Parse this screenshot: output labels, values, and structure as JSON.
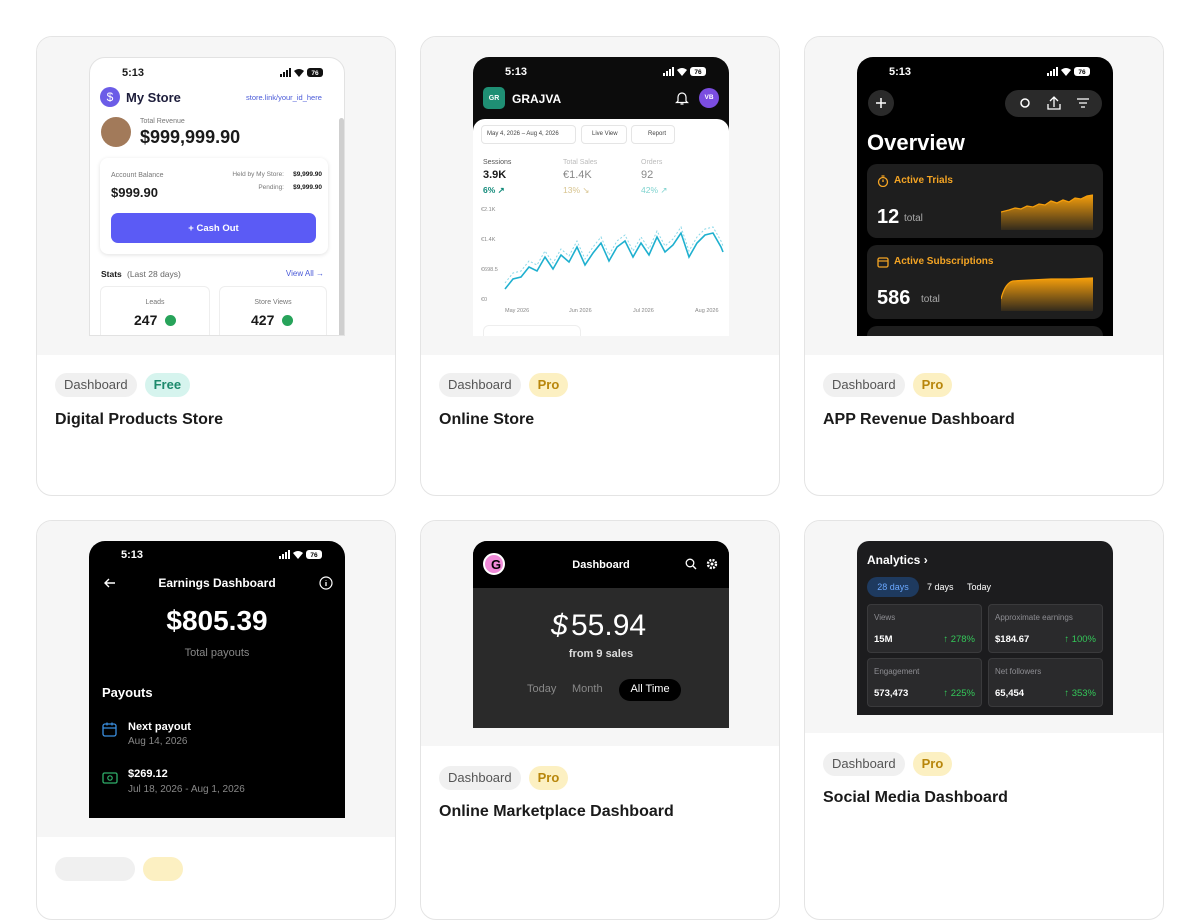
{
  "cards": [
    {
      "preview": {
        "time": "5:13",
        "battery": "76",
        "store_name": "My Store",
        "store_link": "store.link/your_id_here",
        "revenue_label": "Total Revenue",
        "revenue": "$999,999.90",
        "balance_label": "Account Balance",
        "balance": "$999.90",
        "held_label": "Held by My Store:",
        "held": "$9,999.90",
        "pending_label": "Pending:",
        "pending": "$9,999.90",
        "button": "+ Cash Out",
        "stats_label": "Stats",
        "stats_period": "(Last 28 days)",
        "view_all": "View All →",
        "stats": [
          {
            "label": "Leads",
            "value": "247"
          },
          {
            "label": "Store Views",
            "value": "427"
          }
        ]
      },
      "tags": [
        "Dashboard",
        "Free"
      ],
      "title": "Digital Products Store"
    },
    {
      "preview": {
        "time": "5:13",
        "battery": "76",
        "logo": "GR",
        "brand": "GRAJVA",
        "avatar": "VB",
        "date_range": "May 4, 2026 – Aug 4, 2026",
        "live_view": "Live View",
        "report": "Report",
        "metrics": [
          {
            "label": "Sessions",
            "value": "3.9K",
            "change": "6% ↗"
          },
          {
            "label": "Total Sales",
            "value": "€1.4K",
            "change": "13% ↘"
          },
          {
            "label": "Orders",
            "value": "92",
            "change": "42% ↗"
          }
        ],
        "y_labels": [
          "€2.1K",
          "€1.4K",
          "€698.5",
          "€0"
        ],
        "x_labels": [
          "May 2026",
          "Jun 2026",
          "Jul 2026",
          "Aug 2026"
        ]
      },
      "tags": [
        "Dashboard",
        "Pro"
      ],
      "title": "Online Store"
    },
    {
      "preview": {
        "time": "5:13",
        "battery": "76",
        "heading": "Overview",
        "panels": [
          {
            "label": "Active Trials",
            "value": "12",
            "unit": "total"
          },
          {
            "label": "Active Subscriptions",
            "value": "586",
            "unit": "total"
          }
        ]
      },
      "tags": [
        "Dashboard",
        "Pro"
      ],
      "title": "APP Revenue Dashboard"
    },
    {
      "preview": {
        "time": "5:13",
        "battery": "76",
        "heading": "Earnings Dashboard",
        "amount": "$805.39",
        "amount_label": "Total payouts",
        "section": "Payouts",
        "items": [
          {
            "title": "Next payout",
            "subtitle": "Aug 14, 2026"
          },
          {
            "title": "$269.12",
            "subtitle": "Jul 18, 2026 - Aug 1, 2026"
          }
        ]
      }
    },
    {
      "preview": {
        "logo": "G",
        "heading": "Dashboard",
        "currency": "$",
        "amount": "55.94",
        "caption": "from 9 sales",
        "tabs": [
          "Today",
          "Month",
          "All Time"
        ]
      },
      "tags": [
        "Dashboard",
        "Pro"
      ],
      "title": "Online Marketplace Dashboard"
    },
    {
      "preview": {
        "heading": "Analytics ›",
        "ranges": [
          "28 days",
          "7 days",
          "Today"
        ],
        "stats": [
          {
            "label": "Views",
            "value": "15M",
            "change": "↑ 278%"
          },
          {
            "label": "Approximate earnings",
            "value": "$184.67",
            "change": "↑ 100%"
          },
          {
            "label": "Engagement",
            "value": "573,473",
            "change": "↑ 225%"
          },
          {
            "label": "Net followers",
            "value": "65,454",
            "change": "↑ 353%"
          }
        ]
      },
      "tags": [
        "Dashboard",
        "Pro"
      ],
      "title": "Social Media Dashboard"
    }
  ]
}
